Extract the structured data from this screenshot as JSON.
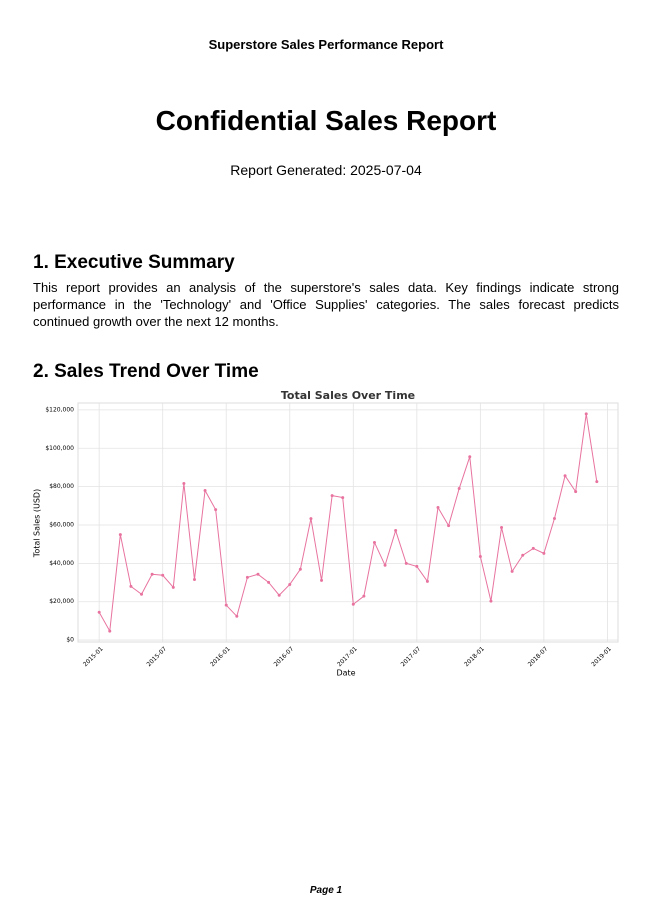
{
  "header": "Superstore Sales Performance Report",
  "title": "Confidential Sales Report",
  "generated": "Report Generated: 2025-07-04",
  "sections": [
    {
      "heading": "1. Executive Summary",
      "body": "This report provides an analysis of the superstore's sales data. Key findings indicate strong performance in the 'Technology' and 'Office Supplies' categories. The sales forecast predicts continued growth over the next 12 months."
    },
    {
      "heading": "2. Sales Trend Over Time"
    }
  ],
  "chart_data": {
    "type": "line",
    "title": "Total Sales Over Time",
    "xlabel": "Date",
    "ylabel": "Total Sales (USD)",
    "x": [
      "2015-01",
      "2015-02",
      "2015-03",
      "2015-04",
      "2015-05",
      "2015-06",
      "2015-07",
      "2015-08",
      "2015-09",
      "2015-10",
      "2015-11",
      "2015-12",
      "2016-01",
      "2016-02",
      "2016-03",
      "2016-04",
      "2016-05",
      "2016-06",
      "2016-07",
      "2016-08",
      "2016-09",
      "2016-10",
      "2016-11",
      "2016-12",
      "2017-01",
      "2017-02",
      "2017-03",
      "2017-04",
      "2017-05",
      "2017-06",
      "2017-07",
      "2017-08",
      "2017-09",
      "2017-10",
      "2017-11",
      "2017-12",
      "2018-01",
      "2018-02",
      "2018-03",
      "2018-04",
      "2018-05",
      "2018-06",
      "2018-07",
      "2018-08",
      "2018-09",
      "2018-10",
      "2018-11",
      "2018-12"
    ],
    "series": [
      {
        "name": "Total Sales",
        "color": "#e8739f",
        "values": [
          14500,
          4700,
          55000,
          28000,
          23900,
          34300,
          33800,
          27500,
          81600,
          31600,
          78000,
          68000,
          18200,
          12400,
          32700,
          34300,
          30100,
          23400,
          29000,
          36900,
          63300,
          31100,
          75300,
          74300,
          18700,
          22900,
          50900,
          39000,
          57100,
          40000,
          38400,
          30600,
          69100,
          59700,
          79000,
          95600,
          43600,
          20300,
          58700,
          35800,
          44200,
          47800,
          45200,
          63400,
          85700,
          77400,
          117900,
          82600
        ]
      }
    ],
    "xlim": [
      "2014-11",
      "2019-02"
    ],
    "xticks": [
      "2015-01",
      "2015-07",
      "2016-01",
      "2016-07",
      "2017-01",
      "2017-07",
      "2018-01",
      "2018-07",
      "2019-01"
    ],
    "ylim": [
      -1000,
      123600
    ],
    "yticks": [
      {
        "value": 0,
        "label": "$0"
      },
      {
        "value": 20000,
        "label": "$20,000"
      },
      {
        "value": 40000,
        "label": "$40,000"
      },
      {
        "value": 60000,
        "label": "$60,000"
      },
      {
        "value": 80000,
        "label": "$80,000"
      },
      {
        "value": 100000,
        "label": "$100,000"
      },
      {
        "value": 120000,
        "label": "$120,000"
      }
    ],
    "grid": true
  },
  "footer": "Page 1"
}
